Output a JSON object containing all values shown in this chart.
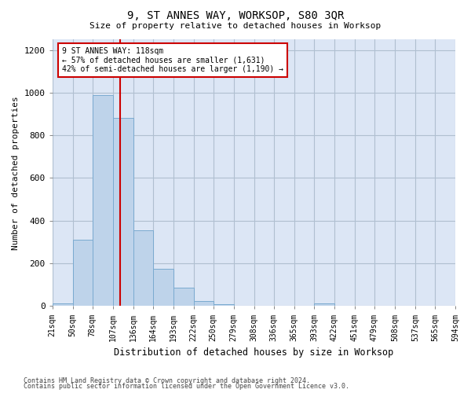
{
  "title": "9, ST ANNES WAY, WORKSOP, S80 3QR",
  "subtitle": "Size of property relative to detached houses in Worksop",
  "xlabel": "Distribution of detached houses by size in Worksop",
  "ylabel": "Number of detached properties",
  "footer_line1": "Contains HM Land Registry data © Crown copyright and database right 2024.",
  "footer_line2": "Contains public sector information licensed under the Open Government Licence v3.0.",
  "bin_edges": [
    21,
    50,
    78,
    107,
    136,
    164,
    193,
    222,
    250,
    279,
    308,
    336,
    365,
    393,
    422,
    451,
    479,
    508,
    537,
    565,
    594
  ],
  "bin_labels": [
    "21sqm",
    "50sqm",
    "78sqm",
    "107sqm",
    "136sqm",
    "164sqm",
    "193sqm",
    "222sqm",
    "250sqm",
    "279sqm",
    "308sqm",
    "336sqm",
    "365sqm",
    "393sqm",
    "422sqm",
    "451sqm",
    "479sqm",
    "508sqm",
    "537sqm",
    "565sqm",
    "594sqm"
  ],
  "bar_heights": [
    13,
    310,
    990,
    880,
    355,
    175,
    85,
    25,
    10,
    0,
    0,
    0,
    0,
    12,
    0,
    0,
    0,
    0,
    0,
    0
  ],
  "property_sqm": 118,
  "annotation_line1": "9 ST ANNES WAY: 118sqm",
  "annotation_line2": "← 57% of detached houses are smaller (1,631)",
  "annotation_line3": "42% of semi-detached houses are larger (1,190) →",
  "bar_color": "#bed3ea",
  "bar_edge_color": "#7aaad0",
  "line_color": "#cc0000",
  "annotation_box_color": "#cc0000",
  "bg_color": "#ffffff",
  "axes_bg_color": "#dce6f5",
  "grid_color": "#b0bfd0",
  "ylim": [
    0,
    1250
  ],
  "yticks": [
    0,
    200,
    400,
    600,
    800,
    1000,
    1200
  ]
}
